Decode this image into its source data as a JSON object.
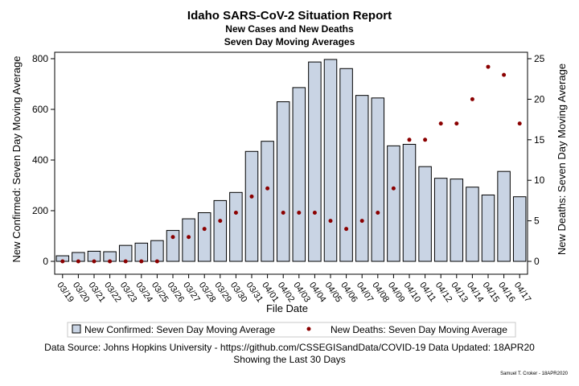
{
  "titles": {
    "main": "Idaho SARS-CoV-2 Situation Report",
    "line2": "New Cases and New Deaths",
    "line3": "Seven Day Moving Averages"
  },
  "footer": {
    "source": "Data Source: Johns Hopkins University - https://github.com/CSSEGISandData/COVID-19 Data Updated: 18APR20",
    "subtitle": "Showing the Last 30 Days",
    "credit": "Samuel T. Croker - 18APR2020"
  },
  "colors": {
    "bar_fill": "#c9d4e4",
    "bar_stroke": "#000000",
    "dot": "#8b0000"
  },
  "chart_data": {
    "type": "bar",
    "xlabel": "File Date",
    "ylabel": "New Confirmed: Seven Day Moving Average",
    "y2label": "New Deaths: Seven Day Moving Average",
    "ylim": [
      0,
      800
    ],
    "yticks": [
      0,
      200,
      400,
      600,
      800
    ],
    "y2lim": [
      0,
      25
    ],
    "y2ticks": [
      0,
      5,
      10,
      15,
      20,
      25
    ],
    "legend_position": "bottom",
    "categories": [
      "03/19",
      "03/20",
      "03/21",
      "03/22",
      "03/23",
      "03/24",
      "03/25",
      "03/26",
      "03/27",
      "03/28",
      "03/29",
      "03/30",
      "03/31",
      "04/01",
      "04/02",
      "04/03",
      "04/04",
      "04/05",
      "04/06",
      "04/07",
      "04/08",
      "04/09",
      "04/10",
      "04/11",
      "04/12",
      "04/13",
      "04/14",
      "04/15",
      "04/16",
      "04/17"
    ],
    "series": [
      {
        "name": "New Confirmed: Seven Day Moving Average",
        "type": "bar",
        "axis": "left",
        "values": [
          22,
          35,
          40,
          38,
          63,
          72,
          82,
          122,
          168,
          192,
          240,
          272,
          434,
          474,
          630,
          686,
          787,
          797,
          761,
          655,
          645,
          456,
          462,
          374,
          328,
          325,
          293,
          262,
          355,
          255
        ]
      },
      {
        "name": "New Deaths: Seven Day Moving Average",
        "type": "scatter",
        "axis": "right",
        "values": [
          0,
          0,
          0,
          0,
          0,
          0,
          0,
          3,
          3,
          4,
          5,
          6,
          8,
          9,
          6,
          6,
          6,
          5,
          4,
          5,
          6,
          9,
          15,
          15,
          17,
          17,
          20,
          24,
          23,
          17
        ]
      }
    ]
  }
}
